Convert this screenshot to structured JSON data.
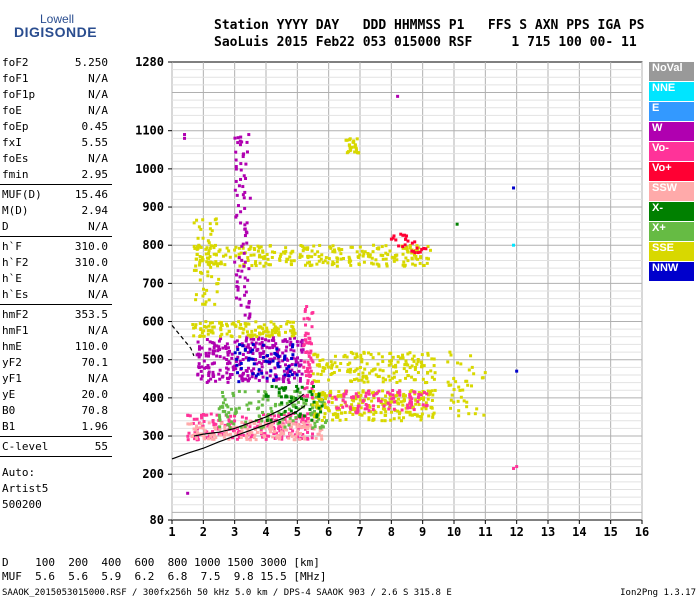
{
  "brand": {
    "line1": "Lowell",
    "line2": "DIGISONDE"
  },
  "header": {
    "line1": "Station YYYY DAY   DDD HHMMSS P1   FFS S AXN PPS IGA PS",
    "line2": "SaoLuis 2015 Feb22 053 015000 RSF     1 715 100 00- 11"
  },
  "params": {
    "group1": [
      {
        "name": "foF2",
        "value": "5.250"
      },
      {
        "name": "foF1",
        "value": "N/A"
      },
      {
        "name": "foF1p",
        "value": "N/A"
      },
      {
        "name": "foE",
        "value": "N/A"
      },
      {
        "name": "foEp",
        "value": "0.45"
      },
      {
        "name": "fxI",
        "value": "5.55"
      },
      {
        "name": "foEs",
        "value": "N/A"
      },
      {
        "name": "fmin",
        "value": "2.95"
      }
    ],
    "group2": [
      {
        "name": "MUF(D)",
        "value": "15.46"
      },
      {
        "name": "M(D)",
        "value": "2.94"
      },
      {
        "name": "D",
        "value": "N/A"
      }
    ],
    "group3": [
      {
        "name": "h`F",
        "value": "310.0"
      },
      {
        "name": "h`F2",
        "value": "310.0"
      },
      {
        "name": "h`E",
        "value": "N/A"
      },
      {
        "name": "h`Es",
        "value": "N/A"
      }
    ],
    "group4": [
      {
        "name": "hmF2",
        "value": "353.5"
      },
      {
        "name": "hmF1",
        "value": "N/A"
      },
      {
        "name": "hmE",
        "value": "110.0"
      },
      {
        "name": "yF2",
        "value": "70.1"
      },
      {
        "name": "yF1",
        "value": "N/A"
      },
      {
        "name": "yE",
        "value": "20.0"
      },
      {
        "name": "B0",
        "value": "70.8"
      },
      {
        "name": "B1",
        "value": "1.96"
      }
    ],
    "group5": [
      {
        "name": "C-level",
        "value": "55"
      }
    ],
    "auto": [
      "Auto:",
      "Artist5",
      "500200"
    ]
  },
  "legend": [
    {
      "label": "NoVal",
      "color": "#999999"
    },
    {
      "label": "NNE",
      "color": "#00e5ff"
    },
    {
      "label": "E",
      "color": "#3399ff"
    },
    {
      "label": "W",
      "color": "#b000b0"
    },
    {
      "label": "Vo-",
      "color": "#ff3399"
    },
    {
      "label": "Vo+",
      "color": "#ff0033"
    },
    {
      "label": "SSW",
      "color": "#ffaaaa"
    },
    {
      "label": "X-",
      "color": "#008000"
    },
    {
      "label": "X+",
      "color": "#66bb44"
    },
    {
      "label": "SSE",
      "color": "#d8d800"
    },
    {
      "label": "NNW",
      "color": "#0000cc"
    }
  ],
  "table": {
    "row1": "D    100  200  400  600  800 1000 1500 3000 [km]",
    "row2": "MUF  5.6  5.6  5.9  6.2  6.8  7.5  9.8 15.5 [MHz]"
  },
  "footer": {
    "left": "SAAOK_2015053015000.RSF / 300fx256h 50 kHz 5.0 km / DPS-4 SAAOK 903 / 2.6 S 315.8 E",
    "right": "Ion2Png 1.3.17"
  },
  "chart_data": {
    "type": "scatter",
    "x_range": [
      1,
      16
    ],
    "y_range": [
      80,
      1280
    ],
    "x_ticks": [
      1,
      2,
      3,
      4,
      5,
      6,
      7,
      8,
      9,
      10,
      11,
      12,
      13,
      14,
      15,
      16
    ],
    "y_ticks": [
      80,
      200,
      300,
      400,
      500,
      600,
      700,
      800,
      900,
      1000,
      1100,
      1280
    ],
    "grid": true,
    "clusters": [
      {
        "color": "#ff3399",
        "x": [
          1.5,
          5.5
        ],
        "y": [
          290,
          360
        ],
        "n": 200
      },
      {
        "color": "#ffaaaa",
        "x": [
          1.5,
          5.8
        ],
        "y": [
          290,
          340
        ],
        "n": 160
      },
      {
        "color": "#66bb44",
        "x": [
          2.5,
          6
        ],
        "y": [
          320,
          420
        ],
        "n": 140
      },
      {
        "color": "#d8d800",
        "x": [
          5.5,
          9.4
        ],
        "y": [
          340,
          420
        ],
        "n": 240
      },
      {
        "color": "#ff3399",
        "x": [
          6,
          9.2
        ],
        "y": [
          360,
          420
        ],
        "n": 90
      },
      {
        "color": "#b000b0",
        "x": [
          1.8,
          5.2
        ],
        "y": [
          440,
          560
        ],
        "n": 280
      },
      {
        "color": "#0000cc",
        "x": [
          3,
          5
        ],
        "y": [
          440,
          540
        ],
        "n": 60
      },
      {
        "color": "#d8d800",
        "x": [
          5.5,
          9.4
        ],
        "y": [
          440,
          520
        ],
        "n": 170
      },
      {
        "color": "#d8d800",
        "x": [
          1.6,
          5
        ],
        "y": [
          560,
          600
        ],
        "n": 120
      },
      {
        "color": "#d8d800",
        "x": [
          1.7,
          9.3
        ],
        "y": [
          745,
          800
        ],
        "n": 260
      },
      {
        "color": "#d8d800",
        "x": [
          1.7,
          2.5
        ],
        "y": [
          640,
          870
        ],
        "n": 60
      },
      {
        "color": "#d8d800",
        "x": [
          6.5,
          7
        ],
        "y": [
          1040,
          1080
        ],
        "n": 25
      },
      {
        "color": "#b000b0",
        "x": [
          3,
          3.5
        ],
        "y": [
          600,
          1100
        ],
        "n": 80
      },
      {
        "color": "#ff3399",
        "x": [
          5.2,
          5.5
        ],
        "y": [
          400,
          640
        ],
        "n": 60
      },
      {
        "color": "#008000",
        "x": [
          4,
          5.8
        ],
        "y": [
          330,
          430
        ],
        "n": 50
      },
      {
        "color": "#ff0033",
        "x": [
          8,
          9.2
        ],
        "y": [
          780,
          830
        ],
        "n": 25
      },
      {
        "color": "#d8d800",
        "x": [
          9.8,
          11
        ],
        "y": [
          350,
          520
        ],
        "n": 40
      }
    ],
    "points": [
      {
        "x": 1.4,
        "y": 1090,
        "color": "#b000b0"
      },
      {
        "x": 1.4,
        "y": 1080,
        "color": "#b000b0"
      },
      {
        "x": 1.5,
        "y": 150,
        "color": "#b000b0"
      },
      {
        "x": 8.2,
        "y": 1190,
        "color": "#b000b0"
      },
      {
        "x": 11.9,
        "y": 950,
        "color": "#0000cc"
      },
      {
        "x": 12,
        "y": 220,
        "color": "#ff3399"
      },
      {
        "x": 11.9,
        "y": 215,
        "color": "#ff3399"
      },
      {
        "x": 12,
        "y": 470,
        "color": "#0000cc"
      },
      {
        "x": 10.1,
        "y": 855,
        "color": "#008000"
      },
      {
        "x": 11.9,
        "y": 800,
        "color": "#00e5ff"
      }
    ],
    "curves": [
      {
        "style": "solid",
        "color": "#000000",
        "x": [
          1,
          1.5,
          2,
          2.5,
          3,
          3.5,
          4,
          4.5,
          5,
          5.25
        ],
        "y": [
          240,
          255,
          268,
          285,
          300,
          315,
          330,
          345,
          365,
          380
        ]
      },
      {
        "style": "solid",
        "color": "#000000",
        "x": [
          1.7,
          2,
          2.5,
          3,
          3.5,
          4,
          4.5,
          5,
          5.2
        ],
        "y": [
          300,
          305,
          310,
          320,
          335,
          350,
          370,
          395,
          410
        ]
      },
      {
        "style": "dashed",
        "color": "#000000",
        "x": [
          1,
          1.3,
          1.6,
          1.7
        ],
        "y": [
          590,
          560,
          530,
          510
        ]
      }
    ]
  }
}
